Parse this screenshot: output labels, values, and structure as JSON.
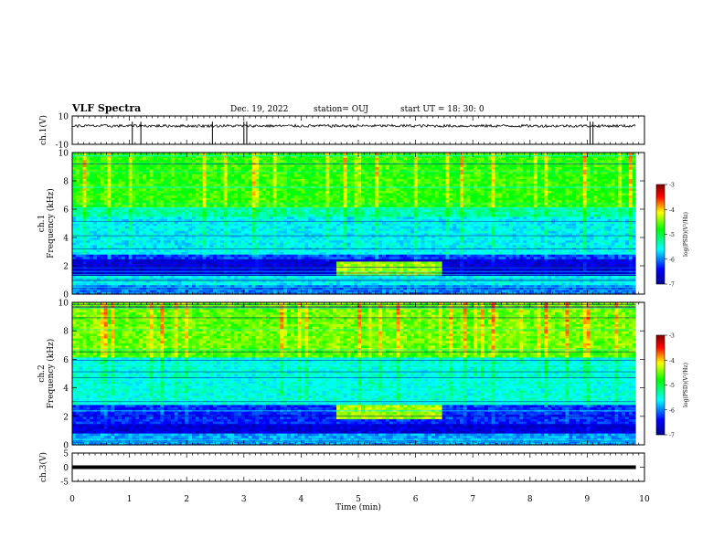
{
  "header": {
    "title": "VLF Spectra",
    "date": "Dec. 19, 2022",
    "station": "station= OUJ",
    "start": "start  UT =   18: 30: 0"
  },
  "colors": {
    "background": "#ffffff",
    "axes": "#000000",
    "colormap": [
      "#00008f",
      "#0000ff",
      "#00ffff",
      "#00ff00",
      "#ffff00",
      "#ff0000",
      "#800000"
    ]
  },
  "chart_data": [
    {
      "type": "line",
      "panel": "ch1-waveform",
      "ylabel": "ch.1(V)",
      "ylim": [
        -10,
        10
      ],
      "yticks": [
        "10",
        "-10"
      ],
      "xlim": [
        0,
        10
      ],
      "series": [
        {
          "baseline": 3,
          "noise_amplitude": 1,
          "spikes_at": [
            1.05,
            1.2,
            2.45,
            3.0,
            3.05,
            9.05,
            9.1
          ]
        }
      ]
    },
    {
      "type": "heatmap",
      "panel": "ch1-spectrogram",
      "ylabel": "ch.1\nFrequency (kHz)",
      "ylim": [
        0,
        10
      ],
      "yticks": [
        "0",
        "2",
        "4",
        "6",
        "8",
        "10"
      ],
      "xlim": [
        0,
        9.85
      ],
      "bands": [
        {
          "from": 0.0,
          "to": 0.6,
          "level": -6.0
        },
        {
          "from": 0.6,
          "to": 1.3,
          "level": -5.6
        },
        {
          "from": 1.3,
          "to": 2.5,
          "level": -6.6
        },
        {
          "from": 2.5,
          "to": 2.9,
          "level": -6.2
        },
        {
          "from": 2.9,
          "to": 5.5,
          "level": -5.6
        },
        {
          "from": 5.5,
          "to": 6.2,
          "level": -5.3
        },
        {
          "from": 6.2,
          "to": 10.0,
          "level": -4.7
        }
      ],
      "event": {
        "t_start": 4.6,
        "t_end": 6.45,
        "f_low": 1.4,
        "f_high": 2.4,
        "level": -4.4
      },
      "colorbar": {
        "label": "log(PSD)(V²/Hz)",
        "ticks": [
          "-3",
          "-4",
          "-5",
          "-6",
          "-7"
        ],
        "range": [
          -7,
          -3
        ]
      }
    },
    {
      "type": "heatmap",
      "panel": "ch2-spectrogram",
      "ylabel": "ch.2\nFrequency (kHz)",
      "ylim": [
        0,
        10
      ],
      "yticks": [
        "0",
        "2",
        "4",
        "6",
        "8",
        "10"
      ],
      "xlim": [
        0,
        9.85
      ],
      "bands": [
        {
          "from": 0.0,
          "to": 0.8,
          "level": -5.9
        },
        {
          "from": 0.8,
          "to": 1.5,
          "level": -6.6
        },
        {
          "from": 1.5,
          "to": 2.9,
          "level": -6.3
        },
        {
          "from": 2.9,
          "to": 6.2,
          "level": -5.5
        },
        {
          "from": 6.2,
          "to": 6.6,
          "level": -4.6
        },
        {
          "from": 6.6,
          "to": 10.0,
          "level": -4.5
        }
      ],
      "event": {
        "t_start": 4.6,
        "t_end": 6.45,
        "f_low": 1.9,
        "f_high": 2.9,
        "level": -4.4
      },
      "colorbar": {
        "label": "log(PSD)(V²/Hz)",
        "ticks": [
          "-3",
          "-4",
          "-5",
          "-6",
          "-7"
        ],
        "range": [
          -7,
          -3
        ]
      }
    },
    {
      "type": "line",
      "panel": "ch3-waveform",
      "ylabel": "ch.3(V)",
      "ylim": [
        -5,
        5
      ],
      "yticks": [
        "5",
        "0",
        "-5"
      ],
      "xlim": [
        0,
        10
      ],
      "series": [
        {
          "constant": 0
        }
      ]
    }
  ],
  "xaxis": {
    "label": "Time (min)",
    "ticks": [
      "0",
      "1",
      "2",
      "3",
      "4",
      "5",
      "6",
      "7",
      "8",
      "9",
      "10"
    ]
  }
}
